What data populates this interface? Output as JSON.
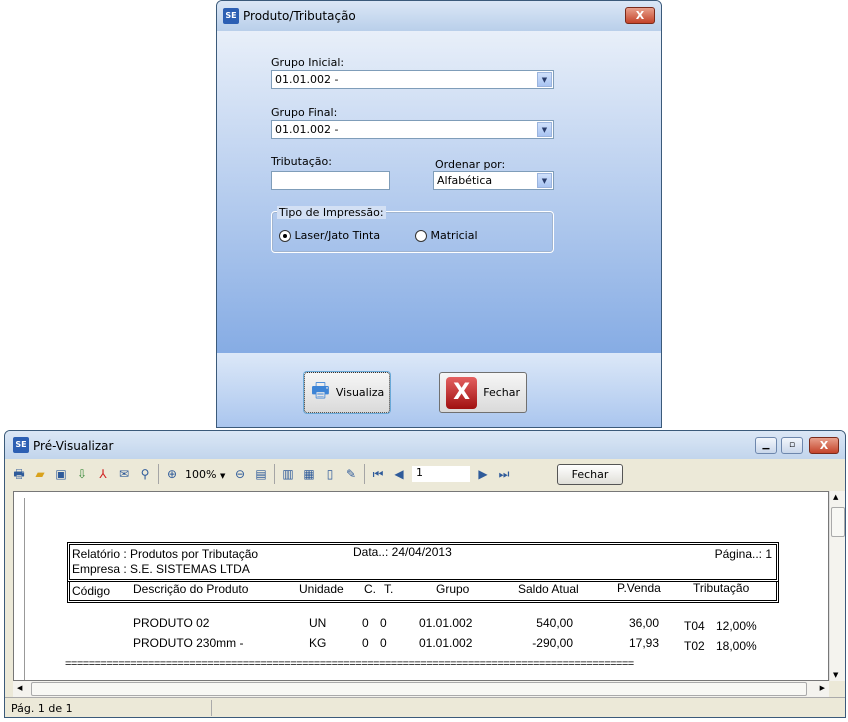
{
  "dialog": {
    "title": "Produto/Tributação",
    "logo": "SE",
    "grupo_inicial_label": "Grupo Inicial:",
    "grupo_inicial_value": "01.01.002 -",
    "grupo_final_label": "Grupo Final:",
    "grupo_final_value": "01.01.002 -",
    "tributacao_label": "Tributação:",
    "tributacao_value": "",
    "ordenar_label": "Ordenar por:",
    "ordenar_value": "Alfabética",
    "tipo_label": "Tipo de Impressão:",
    "radio_laser": "Laser/Jato Tinta",
    "radio_matricial": "Matricial",
    "selected": "Laser/Jato Tinta",
    "visualiza_label": "Visualiza",
    "fechar_label": "Fechar",
    "close_glyph": "X"
  },
  "preview": {
    "title": "Pré-Visualizar",
    "zoom": "100%",
    "page_input": "1",
    "fechar_label": "Fechar",
    "status": "Pág. 1 de 1",
    "report": {
      "relatorio": "Relatório :  Produtos por Tributação",
      "data": "Data..: 24/04/2013",
      "pagina": "Página..: 1",
      "empresa": "Empresa :  S.E. SISTEMAS LTDA",
      "columns": [
        "Código",
        "Descrição do Produto",
        "Unidade",
        "C.",
        "T.",
        "Grupo",
        "Saldo Atual",
        "P.Venda",
        "Tributação"
      ],
      "rows": [
        {
          "descricao": "PRODUTO 02",
          "unidade": "UN",
          "c": "0",
          "t": "0",
          "grupo": "01.01.002",
          "saldo": "540,00",
          "venda": "36,00",
          "trib_code": "T04",
          "trib_pct": "12,00%"
        },
        {
          "descricao": "PRODUTO 230mm -",
          "unidade": "KG",
          "c": "0",
          "t": "0",
          "grupo": "01.01.002",
          "saldo": "-290,00",
          "venda": "17,93",
          "trib_code": "T02",
          "trib_pct": "18,00%"
        }
      ],
      "separator": "================================================================================================"
    }
  }
}
